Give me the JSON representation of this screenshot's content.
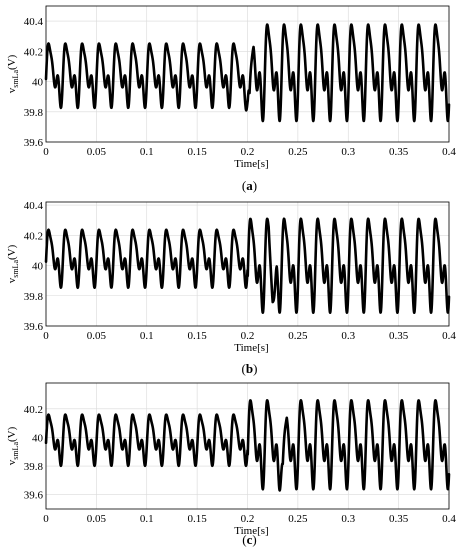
{
  "chart_data": [
    {
      "type": "line",
      "panel": "a",
      "caption": "(a)",
      "ylabel_main": "v",
      "ylabel_sub": "smLa",
      "ylabel_unit": "(V)",
      "xlabel": "Time[s]",
      "xlim": [
        0,
        0.4
      ],
      "ylim": [
        39.6,
        40.5
      ],
      "xticks": [
        "0",
        "0.05",
        "0.1",
        "0.15",
        "0.2",
        "0.25",
        "0.3",
        "0.35",
        "0.4"
      ],
      "yticks": [
        "39.6",
        "39.8",
        "40",
        "40.2",
        "40.4"
      ],
      "grid": true,
      "series": [
        {
          "period": 0.0167,
          "segments": [
            {
              "t_end": 0.2,
              "min": 39.8,
              "max": 40.3
            },
            {
              "t_end": 0.4,
              "min": 39.7,
              "max": 40.45
            }
          ],
          "transient_min": 39.65,
          "transient_t": 0.202
        }
      ]
    },
    {
      "type": "line",
      "panel": "b",
      "caption": "(b)",
      "ylabel_main": "v",
      "ylabel_sub": "smLa",
      "ylabel_unit": "(V)",
      "xlabel": "Time[s]",
      "xlim": [
        0,
        0.4
      ],
      "ylim": [
        39.6,
        40.42
      ],
      "xticks": [
        "0",
        "0.05",
        "0.1",
        "0.15",
        "0.2",
        "0.25",
        "0.3",
        "0.35",
        "0.4"
      ],
      "yticks": [
        "39.6",
        "39.8",
        "40",
        "40.2",
        "40.4"
      ],
      "grid": true,
      "series": [
        {
          "period": 0.0167,
          "segments": [
            {
              "t_end": 0.2,
              "min": 39.83,
              "max": 40.28
            },
            {
              "t_end": 0.4,
              "min": 39.65,
              "max": 40.38
            }
          ],
          "transient_min": 39.63,
          "transient_t": 0.225
        }
      ]
    },
    {
      "type": "line",
      "panel": "c",
      "caption": "(c)",
      "ylabel_main": "v",
      "ylabel_sub": "smLa",
      "ylabel_unit": "(V)",
      "xlabel": "Time[s]",
      "xlim": [
        0,
        0.4
      ],
      "ylim": [
        39.5,
        40.38
      ],
      "xticks": [
        "0",
        "0.05",
        "0.1",
        "0.15",
        "0.2",
        "0.25",
        "0.3",
        "0.35",
        "0.4"
      ],
      "yticks": [
        "39.6",
        "39.8",
        "40",
        "40.2"
      ],
      "grid": true,
      "series": [
        {
          "period": 0.0167,
          "segments": [
            {
              "t_end": 0.2,
              "min": 39.78,
              "max": 40.2
            },
            {
              "t_end": 0.4,
              "min": 39.6,
              "max": 40.33
            }
          ],
          "transient_min": 39.58,
          "transient_t": 0.235
        }
      ]
    }
  ]
}
